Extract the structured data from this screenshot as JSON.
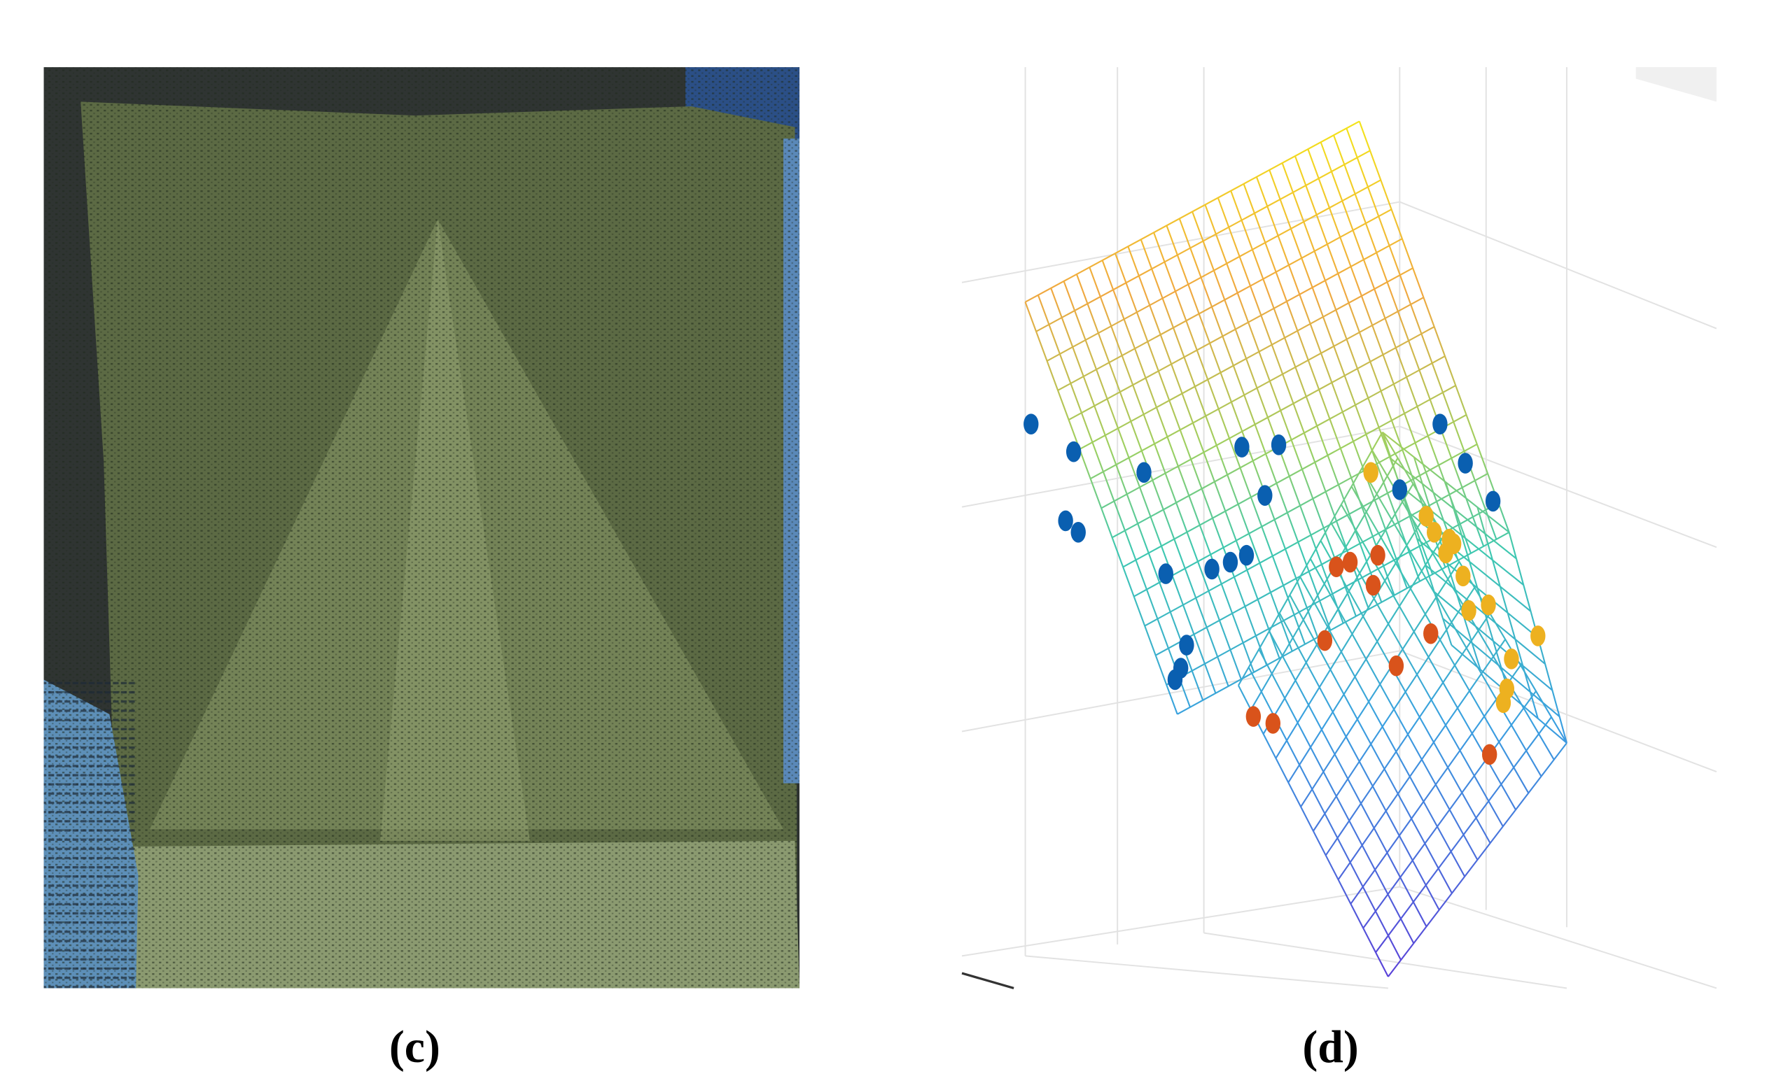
{
  "panels": [
    {
      "label": "(c)"
    },
    {
      "label": "(d)"
    }
  ]
}
